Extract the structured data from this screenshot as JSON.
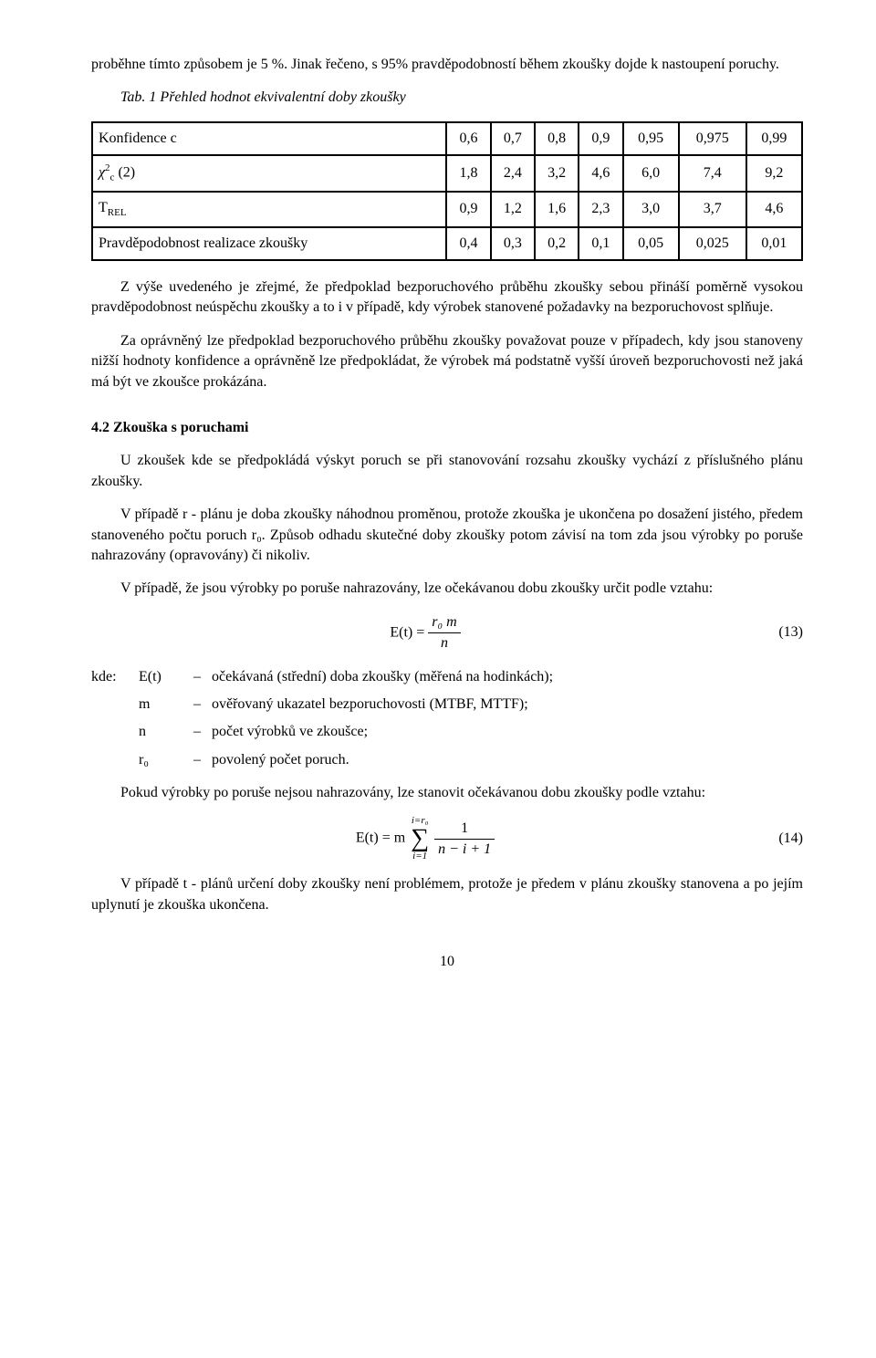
{
  "intro_para": "proběhne tímto způsobem je 5 %. Jinak řečeno, s 95% pravděpodobností během zkoušky dojde k nastoupení poruchy.",
  "table_caption": "Tab. 1 Přehled hodnot ekvivalentní doby zkoušky",
  "table": {
    "row_labels": [
      "Konfidence c",
      "χ²_c (2)",
      "T_REL",
      "Pravděpodobnost realizace zkoušky"
    ],
    "rows": [
      [
        "0,6",
        "0,7",
        "0,8",
        "0,9",
        "0,95",
        "0,975",
        "0,99"
      ],
      [
        "1,8",
        "2,4",
        "3,2",
        "4,6",
        "6,0",
        "7,4",
        "9,2"
      ],
      [
        "0,9",
        "1,2",
        "1,6",
        "2,3",
        "3,0",
        "3,7",
        "4,6"
      ],
      [
        "0,4",
        "0,3",
        "0,2",
        "0,1",
        "0,05",
        "0,025",
        "0,01"
      ]
    ]
  },
  "after_table_p1": "Z výše uvedeného je zřejmé, že předpoklad bezporuchového průběhu zkoušky sebou přináší poměrně vysokou pravděpodobnost neúspěchu zkoušky a to i v případě, kdy výrobek stanovené požadavky na bezporuchovost splňuje.",
  "after_table_p2": "Za oprávněný lze předpoklad bezporuchového průběhu zkoušky považovat pouze v případech, kdy jsou stanoveny nižší hodnoty konfidence a oprávněně lze předpokládat, že výrobek má podstatně vyšší úroveň bezporuchovosti než jaká má být ve zkoušce prokázána.",
  "section_title": "4.2 Zkouška s poruchami",
  "sec_p1": "U zkoušek kde se předpokládá výskyt poruch se při stanovování rozsahu zkoušky vychází z příslušného plánu zkoušky.",
  "sec_p2": "V případě r - plánu je doba zkoušky náhodnou proměnou, protože zkouška je ukončena po dosažení jistého, předem stanoveného počtu poruch r₀. Způsob odhadu skutečné doby zkoušky potom závisí na tom zda jsou výrobky po poruše nahrazovány (opravovány) či nikoliv.",
  "sec_p3": "V případě, že jsou výrobky po poruše nahrazovány, lze očekávanou dobu zkoušky určit podle vztahu:",
  "eq13_num": "(13)",
  "defs_lead": "kde:",
  "defs": [
    {
      "sym": "E(t)",
      "txt": "očekávaná (střední) doba zkoušky (měřená na hodinkách);"
    },
    {
      "sym": "m",
      "txt": "ověřovaný ukazatel bezporuchovosti (MTBF, MTTF);"
    },
    {
      "sym": "n",
      "txt": "počet výrobků ve zkoušce;"
    },
    {
      "sym": "r₀",
      "txt": "povolený počet poruch."
    }
  ],
  "sec_p4": "Pokud výrobky po poruše nejsou nahrazovány, lze stanovit očekávanou dobu zkoušky podle vztahu:",
  "eq14_num": "(14)",
  "sec_p5": "V případě t - plánů určení doby zkoušky není problémem, protože je předem v plánu zkoušky stanovena a po jejím uplynutí je zkouška ukončena.",
  "page_number": "10",
  "eq13": {
    "lhs": "E(t) =",
    "num": "r₀  m",
    "den": "n"
  },
  "eq14": {
    "lhs": "E(t) = m",
    "upper": "i=r₀",
    "lower": "i=1",
    "frac_num": "1",
    "frac_den": "n − i + 1"
  }
}
